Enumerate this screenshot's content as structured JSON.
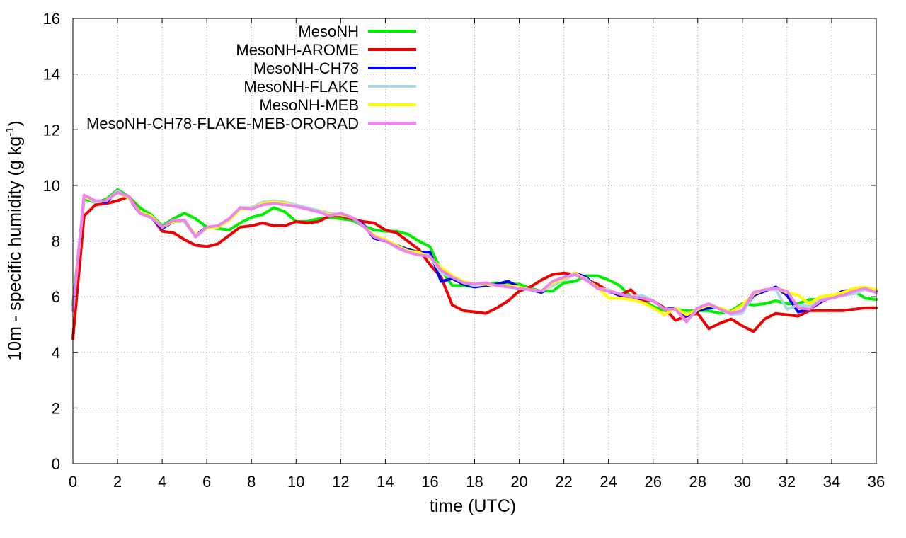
{
  "chart_data": {
    "type": "line",
    "title": "",
    "xlabel": "time (UTC)",
    "ylabel": {
      "main": "10m - specific humidity (g kg",
      "sup": "-1",
      "close": ")"
    },
    "xlim": [
      0,
      36
    ],
    "ylim": [
      0,
      16
    ],
    "xticks": [
      0,
      2,
      4,
      6,
      8,
      10,
      12,
      14,
      16,
      18,
      20,
      22,
      24,
      26,
      28,
      30,
      32,
      34,
      36
    ],
    "yticks": [
      0,
      2,
      4,
      6,
      8,
      10,
      12,
      14,
      16
    ],
    "grid": true,
    "legend_position": "top-left",
    "x": [
      0,
      0.5,
      1,
      1.5,
      2,
      2.5,
      3,
      3.5,
      4,
      4.5,
      5,
      5.5,
      6,
      6.5,
      7,
      7.5,
      8,
      8.5,
      9,
      9.5,
      10,
      10.5,
      11,
      11.5,
      12,
      12.5,
      13,
      13.5,
      14,
      14.5,
      15,
      15.5,
      16,
      16.5,
      17,
      17.5,
      18,
      18.5,
      19,
      19.5,
      20,
      20.5,
      21,
      21.5,
      22,
      22.5,
      23,
      23.5,
      24,
      24.5,
      25,
      25.5,
      26,
      26.5,
      27,
      27.5,
      28,
      28.5,
      29,
      29.5,
      30,
      30.5,
      31,
      31.5,
      32,
      32.5,
      33,
      33.5,
      34,
      34.5,
      35,
      35.5,
      36
    ],
    "series": [
      {
        "name": "MesoNH",
        "color": "#00ee00",
        "values": [
          5.7,
          9.5,
          9.4,
          9.5,
          9.85,
          9.6,
          9.2,
          8.95,
          8.55,
          8.8,
          9.0,
          8.8,
          8.5,
          8.45,
          8.4,
          8.65,
          8.85,
          8.95,
          9.2,
          9.05,
          8.7,
          8.7,
          8.8,
          8.85,
          8.8,
          8.75,
          8.55,
          8.4,
          8.35,
          8.35,
          8.25,
          8.0,
          7.8,
          6.95,
          6.4,
          6.4,
          6.35,
          6.45,
          6.5,
          6.45,
          6.45,
          6.3,
          6.2,
          6.2,
          6.5,
          6.55,
          6.75,
          6.75,
          6.6,
          6.4,
          6.0,
          5.9,
          5.65,
          5.5,
          5.55,
          5.5,
          5.5,
          5.5,
          5.4,
          5.5,
          5.75,
          5.7,
          5.75,
          5.85,
          5.75,
          5.75,
          5.9,
          5.9,
          5.95,
          6.05,
          6.2,
          5.95,
          5.9
        ]
      },
      {
        "name": "MesoNH-AROME",
        "color": "#ee0000",
        "values": [
          4.5,
          8.9,
          9.3,
          9.35,
          9.45,
          9.6,
          9.05,
          8.9,
          8.35,
          8.3,
          8.05,
          7.85,
          7.8,
          7.9,
          8.2,
          8.5,
          8.55,
          8.65,
          8.55,
          8.55,
          8.7,
          8.65,
          8.7,
          8.9,
          8.9,
          8.8,
          8.7,
          8.65,
          8.4,
          8.3,
          8.0,
          7.7,
          7.15,
          6.7,
          5.7,
          5.5,
          5.45,
          5.4,
          5.6,
          5.85,
          6.2,
          6.35,
          6.6,
          6.8,
          6.85,
          6.8,
          6.6,
          6.45,
          6.2,
          6.05,
          6.25,
          5.85,
          5.85,
          5.6,
          5.15,
          5.3,
          5.4,
          4.85,
          5.05,
          5.2,
          4.95,
          4.75,
          5.2,
          5.4,
          5.35,
          5.3,
          5.5,
          5.5,
          5.5,
          5.5,
          5.55,
          5.6,
          5.6
        ]
      },
      {
        "name": "MesoNH-CH78",
        "color": "#0000ee",
        "values": [
          5.5,
          9.6,
          9.45,
          9.4,
          9.8,
          9.55,
          9.0,
          8.85,
          8.45,
          8.7,
          8.7,
          8.2,
          8.5,
          8.5,
          8.75,
          9.2,
          9.15,
          9.35,
          9.4,
          9.35,
          9.25,
          9.15,
          9.05,
          8.95,
          8.95,
          8.85,
          8.6,
          8.1,
          8.0,
          7.85,
          7.7,
          7.6,
          7.6,
          6.55,
          6.65,
          6.45,
          6.35,
          6.4,
          6.45,
          6.55,
          6.35,
          6.25,
          6.15,
          6.45,
          6.7,
          6.85,
          6.7,
          6.3,
          6.2,
          6.05,
          5.9,
          5.95,
          5.85,
          5.55,
          5.6,
          5.3,
          5.5,
          5.6,
          5.6,
          5.4,
          5.45,
          6.05,
          6.2,
          6.35,
          6.05,
          5.45,
          5.55,
          5.8,
          6.0,
          6.2,
          6.25,
          6.3,
          6.2
        ]
      },
      {
        "name": "MesoNH-FLAKE",
        "color": "#add8e6",
        "values": [
          5.5,
          9.6,
          9.4,
          9.45,
          9.8,
          9.55,
          9.05,
          8.85,
          8.5,
          8.7,
          8.7,
          8.15,
          8.45,
          8.5,
          8.75,
          9.2,
          9.2,
          9.4,
          9.45,
          9.4,
          9.3,
          9.2,
          9.1,
          9.0,
          8.95,
          8.85,
          8.55,
          8.2,
          8.05,
          7.75,
          7.6,
          7.55,
          7.45,
          6.85,
          6.7,
          6.5,
          6.4,
          6.45,
          6.4,
          6.35,
          6.3,
          6.25,
          6.2,
          6.4,
          6.6,
          6.8,
          6.65,
          6.3,
          6.25,
          6.1,
          6.0,
          6.05,
          5.85,
          5.55,
          5.55,
          5.1,
          5.55,
          5.7,
          5.55,
          5.35,
          5.4,
          6.1,
          6.25,
          6.25,
          5.55,
          5.7,
          5.65,
          5.9,
          6.0,
          6.05,
          6.1,
          6.25,
          6.15
        ]
      },
      {
        "name": "MesoNH-MEB",
        "color": "#ffff00",
        "values": [
          5.5,
          9.6,
          9.45,
          9.45,
          9.75,
          9.55,
          9.05,
          8.9,
          8.5,
          8.7,
          8.75,
          8.2,
          8.45,
          8.5,
          8.75,
          9.15,
          9.15,
          9.35,
          9.4,
          9.35,
          9.25,
          9.15,
          9.05,
          8.95,
          8.95,
          8.85,
          8.55,
          8.2,
          8.05,
          7.85,
          7.65,
          7.6,
          7.4,
          7.05,
          6.75,
          6.55,
          6.45,
          6.45,
          6.4,
          6.4,
          6.35,
          6.25,
          6.2,
          6.5,
          6.65,
          6.85,
          6.6,
          6.35,
          5.95,
          5.95,
          5.9,
          5.8,
          5.6,
          5.35,
          5.6,
          5.35,
          5.55,
          5.7,
          5.6,
          5.45,
          5.7,
          6.1,
          6.25,
          6.3,
          6.15,
          6.05,
          5.75,
          6.0,
          6.05,
          6.15,
          6.3,
          6.35,
          6.25
        ]
      },
      {
        "name": "MesoNH-CH78-FLAKE-MEB-ORORAD",
        "color": "#ee82ee",
        "values": [
          5.5,
          9.65,
          9.45,
          9.45,
          9.75,
          9.6,
          9.0,
          8.85,
          8.5,
          8.75,
          8.75,
          8.15,
          8.5,
          8.55,
          8.8,
          9.2,
          9.15,
          9.3,
          9.35,
          9.3,
          9.25,
          9.15,
          9.05,
          8.9,
          9.0,
          8.85,
          8.55,
          8.15,
          8.0,
          7.8,
          7.6,
          7.5,
          7.45,
          6.95,
          6.7,
          6.5,
          6.45,
          6.5,
          6.4,
          6.35,
          6.3,
          6.25,
          6.2,
          6.55,
          6.7,
          6.8,
          6.6,
          6.3,
          6.2,
          6.1,
          6.0,
          5.95,
          5.85,
          5.55,
          5.55,
          5.1,
          5.6,
          5.75,
          5.55,
          5.4,
          5.5,
          6.15,
          6.25,
          6.3,
          6.2,
          5.6,
          5.55,
          5.85,
          5.95,
          6.05,
          6.2,
          6.3,
          6.15
        ]
      }
    ]
  }
}
